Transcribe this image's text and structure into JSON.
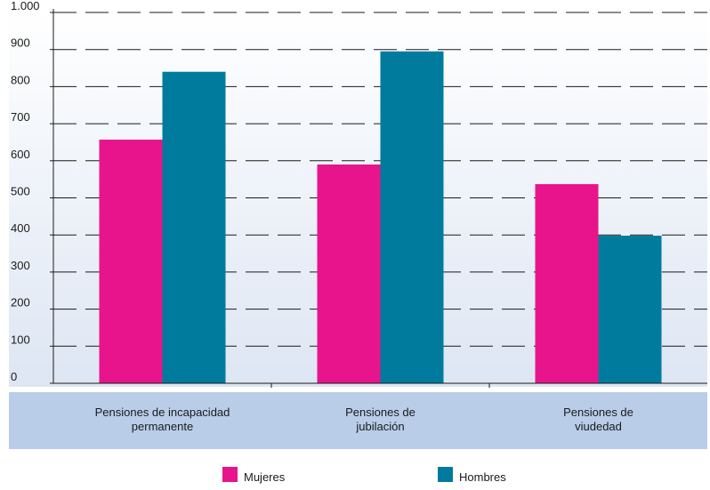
{
  "chart_data": {
    "type": "bar",
    "categories": [
      [
        "Pensiones de incapacidad",
        "permanente"
      ],
      [
        "Pensiones de",
        "jubilación"
      ],
      [
        "Pensiones de",
        "viudedad"
      ]
    ],
    "series": [
      {
        "name": "Mujeres",
        "values": [
          657,
          590,
          537
        ],
        "color": "#e8148c"
      },
      {
        "name": "Hombres",
        "values": [
          840,
          895,
          398
        ],
        "color": "#007b9e"
      }
    ],
    "ylim": [
      0,
      1000
    ],
    "yticks": [
      0,
      100,
      200,
      300,
      400,
      500,
      600,
      700,
      800,
      900,
      1000
    ],
    "ytick_labels": [
      "0",
      "100",
      "200",
      "300",
      "400",
      "500",
      "600",
      "700",
      "800",
      "900",
      "1.000"
    ],
    "title": "",
    "xlabel": "",
    "ylabel": "",
    "grid": "dashed horizontal",
    "legend_position": "bottom",
    "colors": {
      "plot_background_top": "#ffffff",
      "plot_background_bottom": "#dde6f3",
      "category_band": "#b9cde9",
      "grid": "#1a1a1a",
      "axis": "#1a1a1a"
    }
  }
}
